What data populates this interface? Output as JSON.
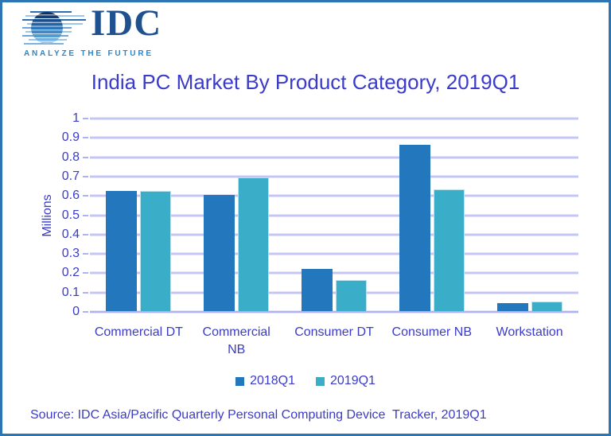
{
  "logo": {
    "brand": "IDC",
    "tagline": "ANALYZE THE FUTURE"
  },
  "title": "India PC Market By Product Category, 2019Q1",
  "source": "Source: IDC Asia/Pacific Quarterly Personal Computing Device  Tracker, 2019Q1",
  "colors": {
    "frame": "#2E75B6",
    "text_blue": "#3B3BCB",
    "gridline": "#C3C6F4",
    "axis_line": "#AEB2EF",
    "series_2018": "#2377BC",
    "series_2019": "#3AAEC9",
    "logo_navy": "#20518F",
    "logo_tagline_blue": "#2E86C6"
  },
  "chart_data": {
    "type": "bar",
    "title": "India PC Market By Product Category, 2019Q1",
    "categories": [
      "Commercial DT",
      "Commercial NB",
      "Consumer DT",
      "Consumer NB",
      "Workstation"
    ],
    "category_label_lines": [
      [
        "Commercial DT"
      ],
      [
        "Commercial",
        "NB"
      ],
      [
        "Consumer DT"
      ],
      [
        "Consumer NB"
      ],
      [
        "Workstation"
      ]
    ],
    "series": [
      {
        "name": "2018Q1",
        "color": "#2377BC",
        "values": [
          0.62,
          0.6,
          0.22,
          0.86,
          0.04
        ]
      },
      {
        "name": "2019Q1",
        "color": "#3AAEC9",
        "values": [
          0.62,
          0.69,
          0.16,
          0.63,
          0.05
        ]
      }
    ],
    "xlabel": "",
    "ylabel": "Millions",
    "ylim": [
      0,
      1
    ],
    "ytick_step": 0.1,
    "grid": true,
    "legend_position": "bottom"
  }
}
